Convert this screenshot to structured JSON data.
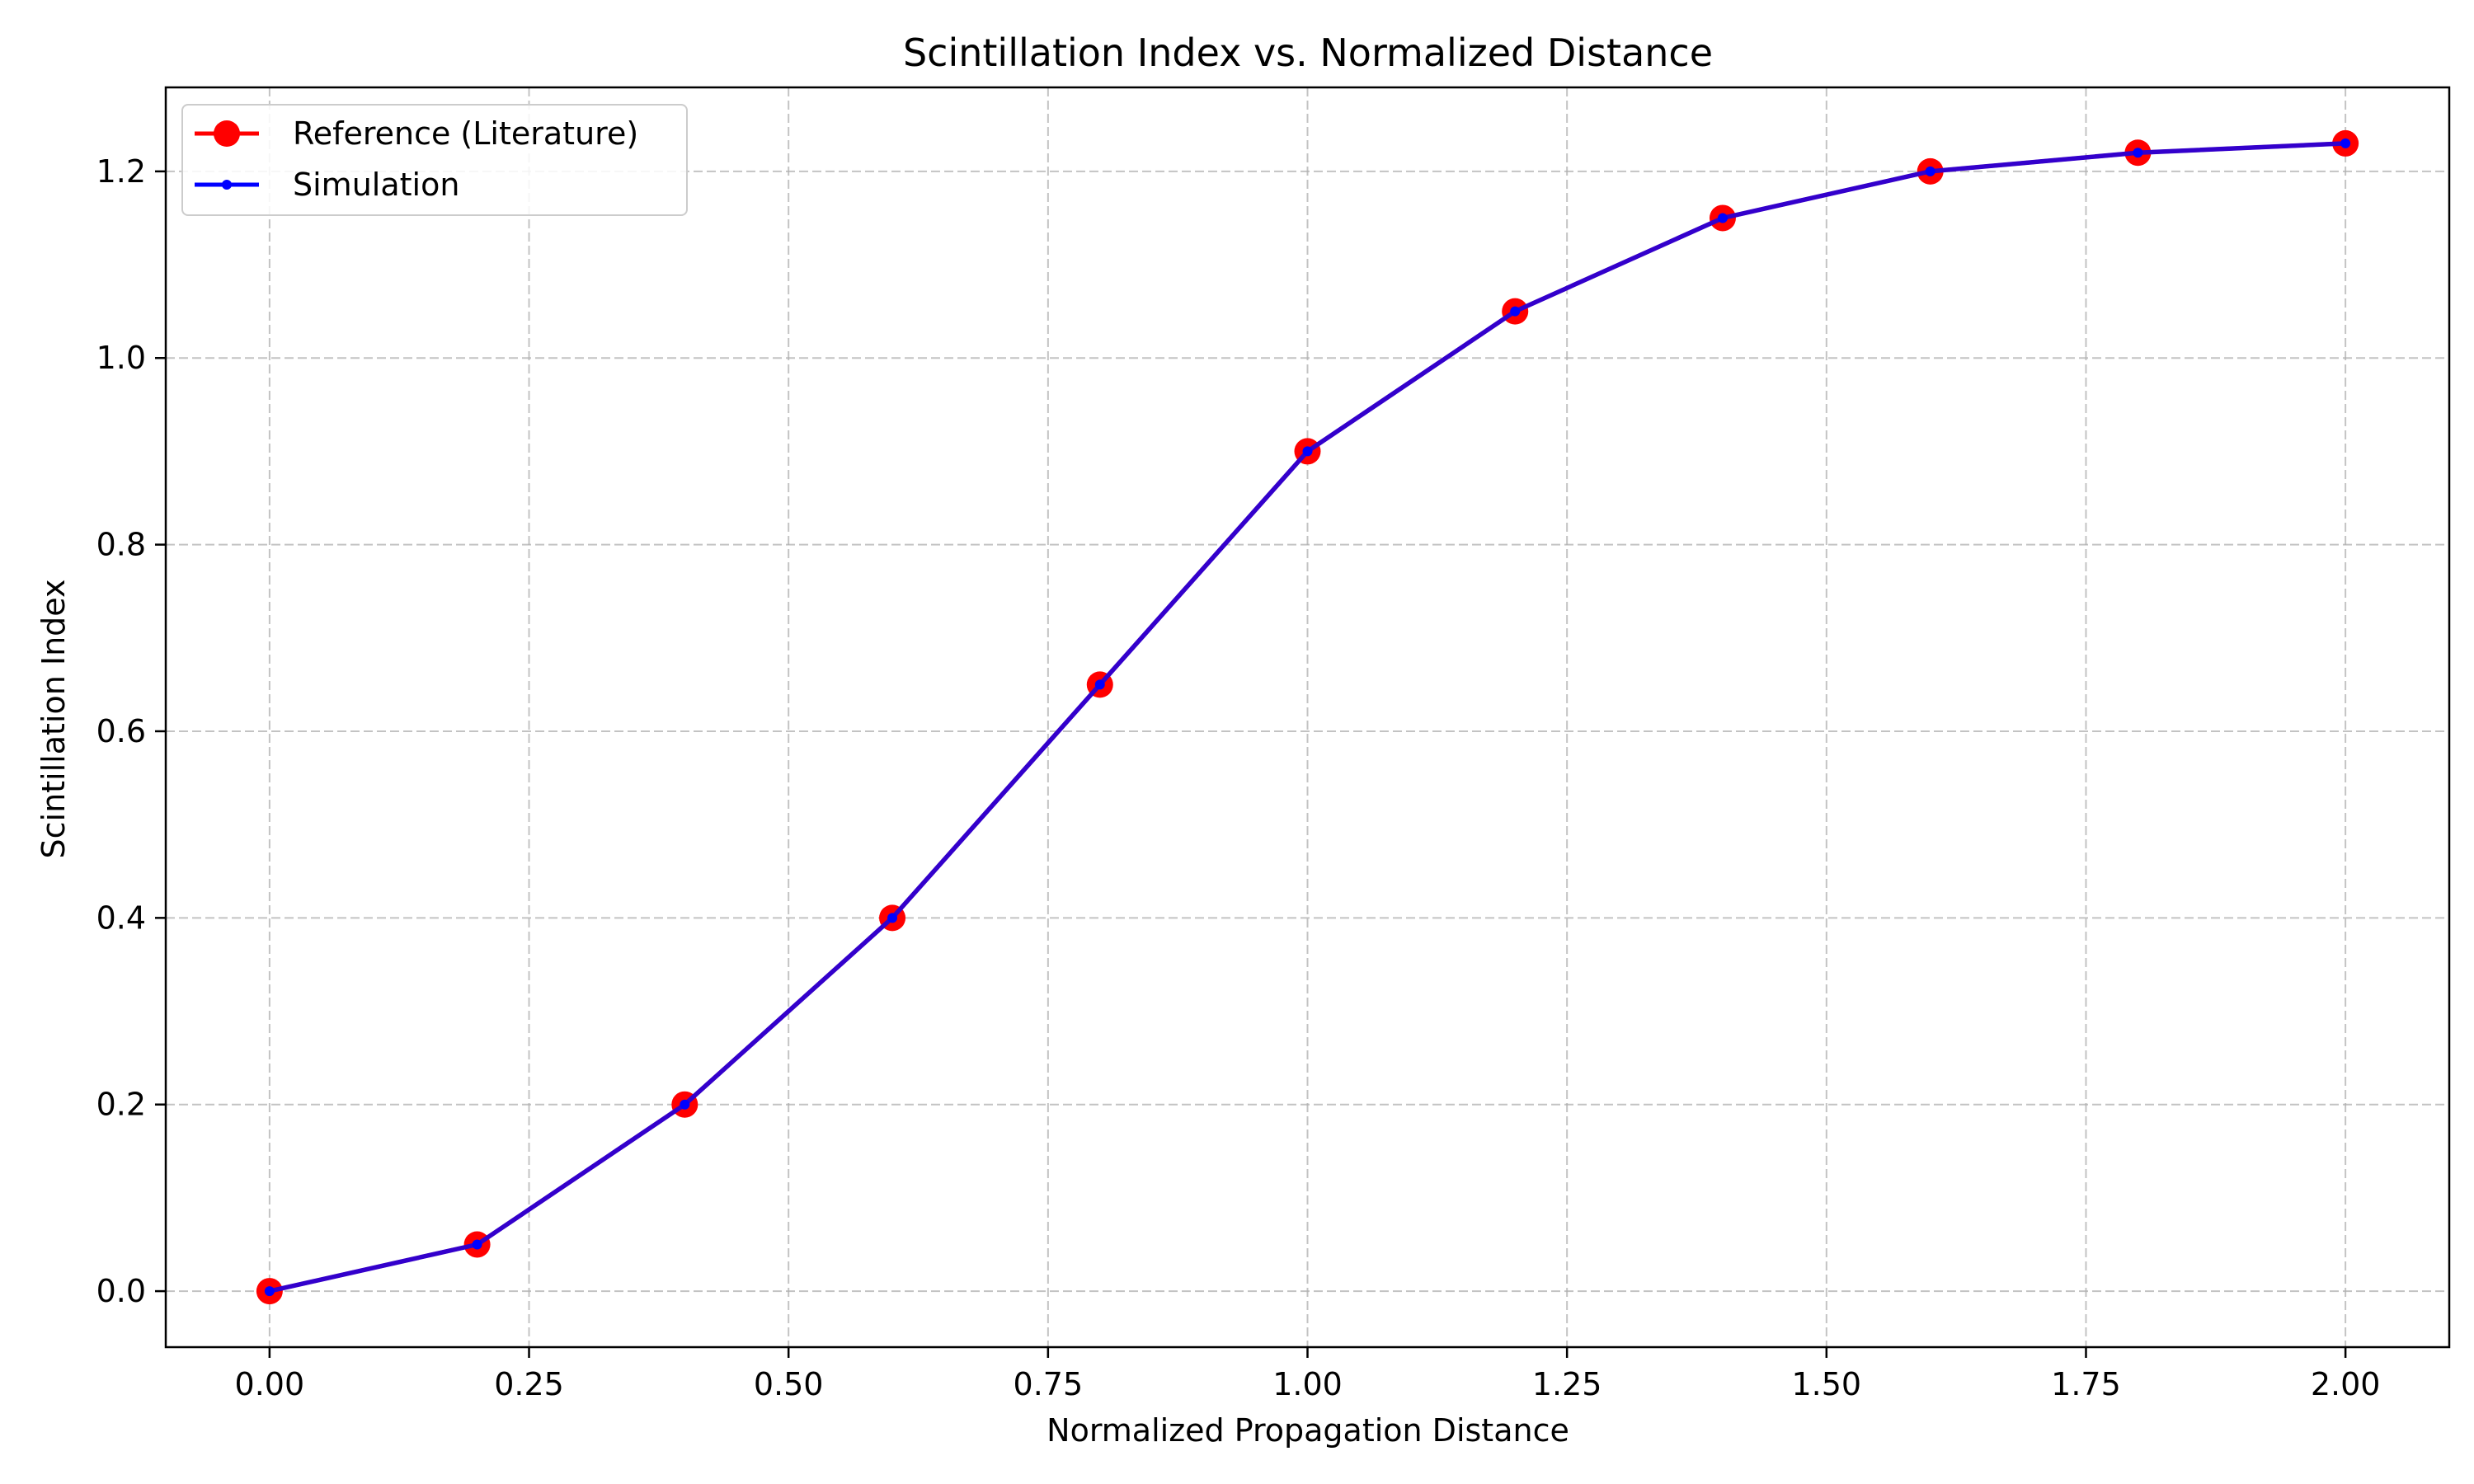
{
  "chart_data": {
    "type": "line",
    "title": "Scintillation Index vs. Normalized Distance",
    "xlabel": "Normalized Propagation Distance",
    "ylabel": "Scintillation Index",
    "xlim": [
      -0.1,
      2.1
    ],
    "ylim": [
      -0.06,
      1.29
    ],
    "xticks": [
      0.0,
      0.25,
      0.5,
      0.75,
      1.0,
      1.25,
      1.5,
      1.75,
      2.0
    ],
    "xtick_labels": [
      "0.00",
      "0.25",
      "0.50",
      "0.75",
      "1.00",
      "1.25",
      "1.50",
      "1.75",
      "2.00"
    ],
    "yticks": [
      0.0,
      0.2,
      0.4,
      0.6,
      0.8,
      1.0,
      1.2
    ],
    "ytick_labels": [
      "0.0",
      "0.2",
      "0.4",
      "0.6",
      "0.8",
      "1.0",
      "1.2"
    ],
    "grid": true,
    "legend_position": "top-left",
    "x": [
      0.0,
      0.2,
      0.4,
      0.6,
      0.8,
      1.0,
      1.2,
      1.4,
      1.6,
      1.8,
      2.0
    ],
    "series": [
      {
        "name": "Reference (Literature)",
        "color": "#ff0000",
        "marker": "large-circle",
        "values": [
          0.0,
          0.05,
          0.2,
          0.4,
          0.65,
          0.9,
          1.05,
          1.15,
          1.2,
          1.22,
          1.23
        ]
      },
      {
        "name": "Simulation",
        "color": "#0000ff",
        "marker": "small-dot",
        "values": [
          0.0,
          0.05,
          0.2,
          0.4,
          0.65,
          0.9,
          1.05,
          1.15,
          1.2,
          1.22,
          1.23
        ]
      }
    ]
  }
}
